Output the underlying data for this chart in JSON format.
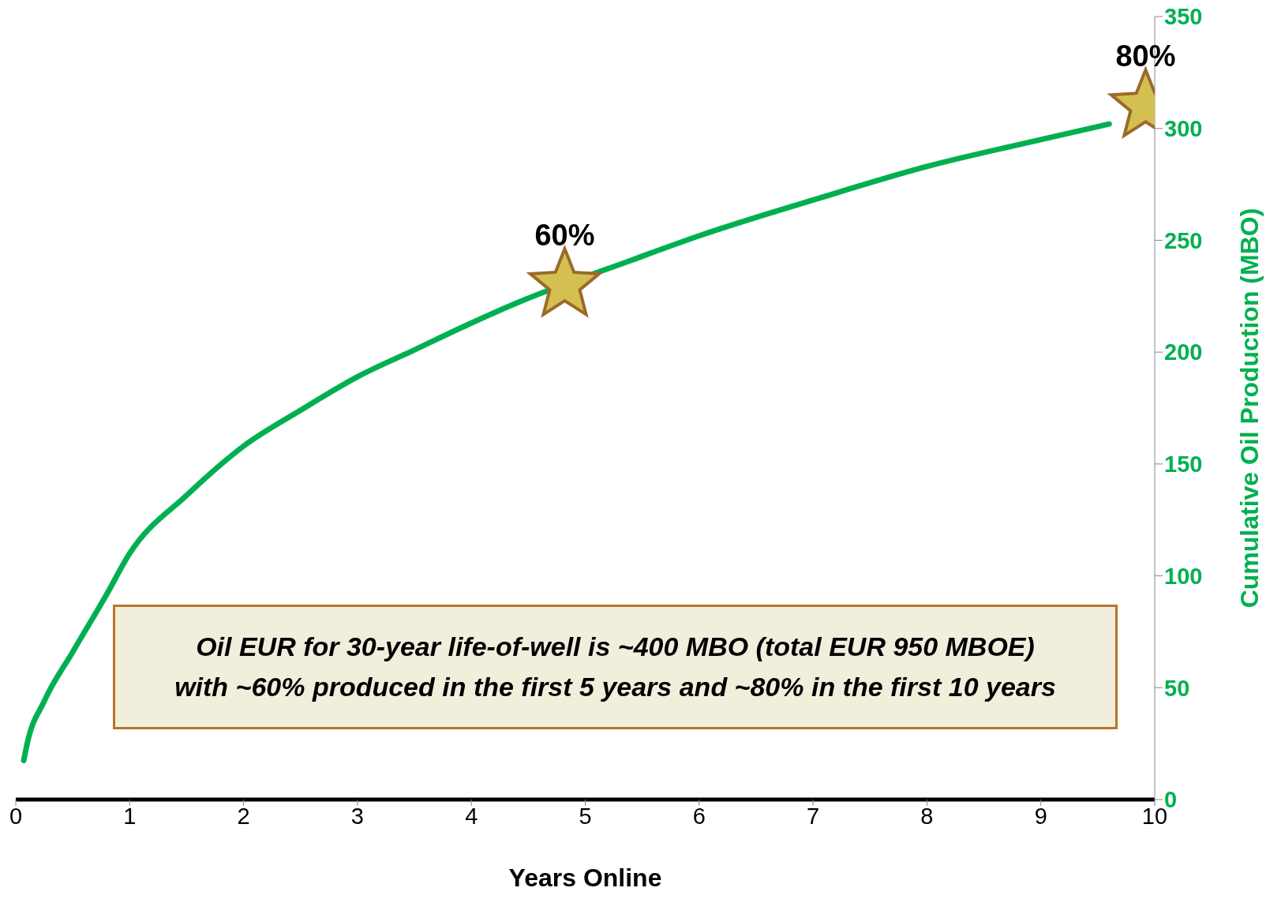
{
  "chart_data": {
    "type": "line",
    "xlabel": "Years Online",
    "ylabel": "Cumulative Oil Production (MBO)",
    "xlim": [
      0,
      10
    ],
    "xticks": [
      0,
      1,
      2,
      3,
      4,
      5,
      6,
      7,
      8,
      9,
      10
    ],
    "ylim": [
      0,
      350
    ],
    "yticks": [
      0,
      50,
      100,
      150,
      200,
      250,
      300,
      350
    ],
    "grid": false,
    "legend": false,
    "series": [
      {
        "color": "#00b050",
        "marker": "none",
        "x": [
          0.07,
          0.1,
          0.25,
          0.5,
          0.79,
          1,
          1.5,
          2,
          2.5,
          3,
          3.5,
          4,
          4.4,
          5.4,
          6,
          7,
          8,
          9,
          9.6
        ],
        "values": [
          17.5,
          25,
          44,
          66,
          91,
          110,
          136,
          158,
          174,
          189,
          201,
          213,
          222,
          241,
          252,
          268,
          283,
          295,
          302
        ]
      },
      {
        "type": "scatter",
        "color": "#d4c050",
        "marker": "star",
        "x": [
          4.82,
          9.92
        ],
        "values": [
          230,
          310
        ]
      }
    ],
    "annotations": [
      {
        "text": "60%",
        "x": 4.82,
        "y": 230
      },
      {
        "text": "80%",
        "x": 9.92,
        "y": 310
      },
      "Oil EUR for 30-year life-of-well is ~400 MBO (total EUR 950 MBOE) with ~60% produced in the first 5 years and ~80% in the first 10 years"
    ]
  }
}
